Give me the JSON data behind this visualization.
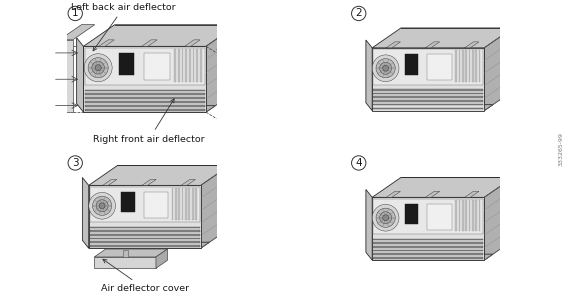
{
  "bg_color": "#ffffff",
  "text_color": "#1a1a1a",
  "panel_line_color": "#999999",
  "watermark": "333265-99",
  "number_fontsize": 8.5,
  "label_fontsize": 6.8,
  "watermark_fontsize": 4.5,
  "fig_width": 5.67,
  "fig_height": 2.99,
  "panels": [
    {
      "number": "1",
      "show_dashed": true,
      "show_cover": false
    },
    {
      "number": "2",
      "show_dashed": false,
      "show_cover": false
    },
    {
      "number": "3",
      "show_dashed": false,
      "show_cover": true
    },
    {
      "number": "4",
      "show_dashed": false,
      "show_cover": false
    }
  ],
  "shelf": {
    "lw": 0.6,
    "edge_color": "#2a2a2a",
    "front_face_color": "#e0e0e0",
    "top_face_color": "#c8c8c8",
    "right_face_color": "#b0b0b0",
    "left_face_color": "#c0c0c0",
    "slot_color": "#888888",
    "slot_edge": "#555555",
    "vent_color": "#d5d5d5",
    "inner_vent_color": "#aaaaaa",
    "dark_color": "#222222",
    "white_panel_color": "#f0f0f0",
    "stripe_color": "#999999",
    "handle_color": "#bbbbbb"
  }
}
